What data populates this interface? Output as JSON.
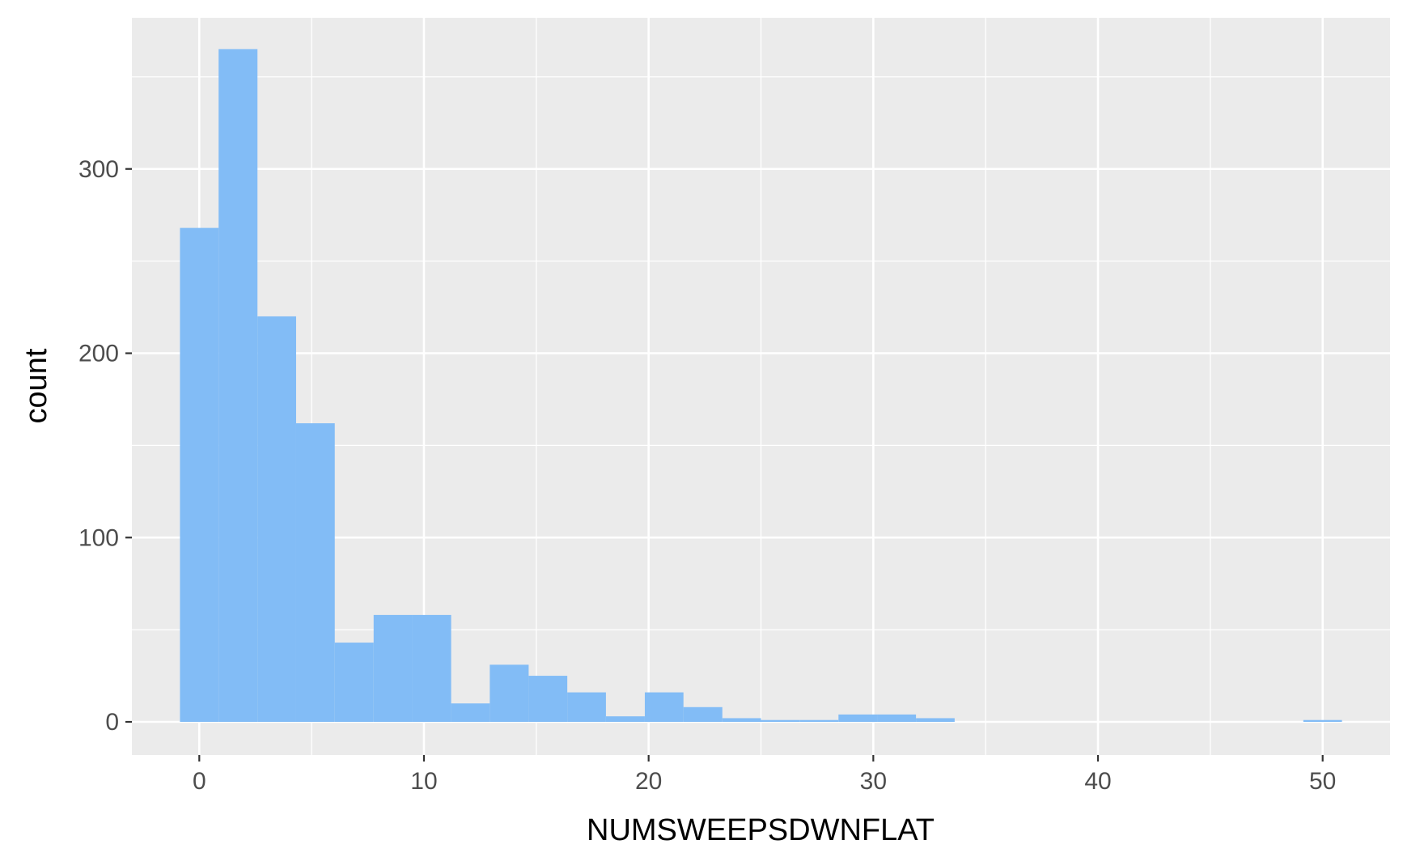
{
  "chart_data": {
    "type": "bar",
    "subtype": "histogram",
    "xlabel": "NUMSWEEPSDWNFLAT",
    "ylabel": "count",
    "xlim": [
      -3,
      53
    ],
    "ylim": [
      -18,
      382
    ],
    "x_ticks": [
      0,
      10,
      20,
      30,
      40,
      50
    ],
    "x_tick_labels": [
      "0",
      "10",
      "20",
      "30",
      "40",
      "50"
    ],
    "y_ticks": [
      0,
      100,
      200,
      300
    ],
    "y_tick_labels": [
      "0",
      "100",
      "200",
      "300"
    ],
    "grid": true,
    "legend": "none",
    "bins": [
      {
        "x0": -0.86,
        "x1": 0.86,
        "count": 268
      },
      {
        "x0": 0.86,
        "x1": 2.59,
        "count": 365
      },
      {
        "x0": 2.59,
        "x1": 4.31,
        "count": 220
      },
      {
        "x0": 4.31,
        "x1": 6.03,
        "count": 162
      },
      {
        "x0": 6.03,
        "x1": 7.76,
        "count": 43
      },
      {
        "x0": 7.76,
        "x1": 9.48,
        "count": 58
      },
      {
        "x0": 9.48,
        "x1": 11.21,
        "count": 58
      },
      {
        "x0": 11.21,
        "x1": 12.93,
        "count": 10
      },
      {
        "x0": 12.93,
        "x1": 14.66,
        "count": 31
      },
      {
        "x0": 14.66,
        "x1": 16.38,
        "count": 25
      },
      {
        "x0": 16.38,
        "x1": 18.1,
        "count": 16
      },
      {
        "x0": 18.1,
        "x1": 19.83,
        "count": 3
      },
      {
        "x0": 19.83,
        "x1": 21.55,
        "count": 16
      },
      {
        "x0": 21.55,
        "x1": 23.28,
        "count": 8
      },
      {
        "x0": 23.28,
        "x1": 25.0,
        "count": 2
      },
      {
        "x0": 25.0,
        "x1": 26.72,
        "count": 1
      },
      {
        "x0": 26.72,
        "x1": 28.45,
        "count": 1
      },
      {
        "x0": 28.45,
        "x1": 30.17,
        "count": 4
      },
      {
        "x0": 30.17,
        "x1": 31.9,
        "count": 4
      },
      {
        "x0": 31.9,
        "x1": 33.62,
        "count": 2
      },
      {
        "x0": 49.14,
        "x1": 50.86,
        "count": 1
      }
    ],
    "colors": {
      "panel": "#EBEBEB",
      "grid": "#FFFFFF",
      "bar": "#82BCF6"
    }
  }
}
